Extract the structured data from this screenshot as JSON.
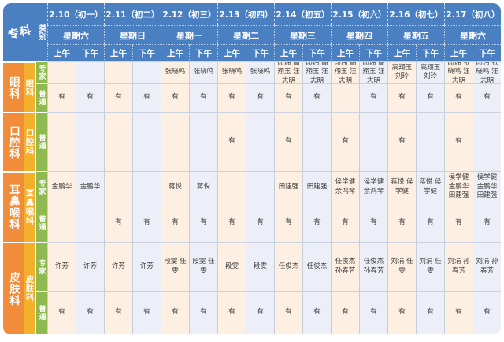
{
  "header": {
    "specialty_label": "专科",
    "category_label": "类别",
    "am_label": "上午",
    "pm_label": "下午",
    "days": [
      {
        "date": "2.10（初一）",
        "weekday": "星期六"
      },
      {
        "date": "2.11（初二）",
        "weekday": "星期日"
      },
      {
        "date": "2.12（初三）",
        "weekday": "星期一"
      },
      {
        "date": "2.13（初四）",
        "weekday": "星期二"
      },
      {
        "date": "2.14（初五）",
        "weekday": "星期三"
      },
      {
        "date": "2.15（初六）",
        "weekday": "星期四"
      },
      {
        "date": "2.16（初七）",
        "weekday": "星期五"
      },
      {
        "date": "2.17（初八）",
        "weekday": "星期六"
      }
    ]
  },
  "availability_label": "有",
  "sections": [
    {
      "name": "眼科",
      "rows": [
        {
          "category": "专家",
          "cells": [
            "",
            "",
            "",
            "",
            "张晓鸣",
            "张晓鸣",
            "张晓鸣",
            "张晓鸣",
            "印炜 高翔玉 汪志明",
            "印炜 高翔玉 汪志明",
            "印炜 高翔玉 汪志明",
            "印炜 高翔玉 汪志明",
            "高翔玉 刘玲",
            "高翔玉 刘玲",
            "印炜 张晓鸣 汪志明",
            "印炜 张晓鸣 汪志明"
          ]
        },
        {
          "category": "普通",
          "cells": [
            "有",
            "有",
            "有",
            "有",
            "有",
            "有",
            "有",
            "有",
            "有",
            "有",
            "",
            "有",
            "有",
            "有",
            "有",
            "有"
          ]
        }
      ]
    },
    {
      "name": "口腔科",
      "rows": [
        {
          "category": "普通",
          "cells": [
            "",
            "",
            "",
            "",
            "",
            "",
            "有",
            "",
            "有",
            "",
            "有",
            "",
            "有",
            "",
            "有",
            ""
          ]
        }
      ]
    },
    {
      "name": "耳鼻喉科",
      "rows": [
        {
          "category": "专家",
          "cells": [
            "金鹏华",
            "金鹏华",
            "",
            "",
            "蒋悦",
            "蒋悦",
            "",
            "",
            "田建强",
            "田建强",
            "侯学健 余鸿琴",
            "侯学健 余鸿琴",
            "蒋悦 侯学健",
            "蒋悦 侯学健",
            "侯学健 金鹏华 田建强",
            "侯学健 金鹏华 田建强"
          ]
        },
        {
          "category": "普通",
          "cells": [
            "",
            "",
            "有",
            "有",
            "有",
            "有",
            "有",
            "有",
            "有",
            "有",
            "有",
            "有",
            "有",
            "有",
            "有",
            "有"
          ]
        }
      ]
    },
    {
      "name": "皮肤科",
      "rows": [
        {
          "category": "专家",
          "cells": [
            "许芳",
            "许芳",
            "许芳",
            "许芳",
            "段雯 任雯",
            "段雯 任雯",
            "段雯",
            "段雯",
            "任俊杰",
            "任俊杰",
            "任俊杰 孙春芳",
            "任俊杰 孙春芳",
            "刘涓 任雯",
            "刘涓 任雯",
            "刘涓 孙春芳",
            "刘涓 孙春芳"
          ]
        },
        {
          "category": "普通",
          "cells": [
            "有",
            "有",
            "有",
            "有",
            "有",
            "有",
            "有",
            "有",
            "有",
            "有",
            "有",
            "有",
            "有",
            "有",
            "有",
            "有"
          ]
        }
      ]
    }
  ],
  "colors": {
    "header_blue": "#4a7fc2",
    "specialty_orange": "#f08c3a",
    "specialty_gold": "#f3b02a",
    "category_green": "#8eba50",
    "am_cell": "#fdf0e2",
    "pm_cell": "#edeff8"
  }
}
